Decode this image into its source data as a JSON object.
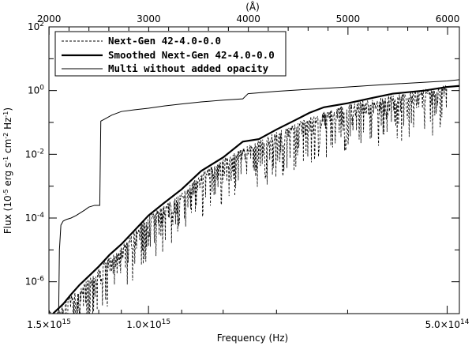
{
  "chart_data": {
    "type": "line",
    "title": "",
    "xlabel": "Frequency (Hz)",
    "ylabel_parts": [
      "Flux (10",
      "-5",
      " erg s",
      "-1",
      " cm",
      "-2",
      " Hz",
      "-1",
      ")"
    ],
    "x_scale": "reciprocal",
    "y_scale": "log",
    "xlim_hz": [
      1500000000000000.0,
      490000000000000.0
    ],
    "ylim": [
      1e-07,
      100
    ],
    "x_ticks": [
      {
        "value": 1500000000000000.0,
        "base": "1.5×10",
        "exp": "15"
      },
      {
        "value": 1000000000000000.0,
        "base": "1.0×10",
        "exp": "15"
      },
      {
        "value": 500000000000000.0,
        "base": "5.0×10",
        "exp": "14"
      }
    ],
    "y_ticks": [
      {
        "value": 1e-06,
        "base": "10",
        "exp": "-6"
      },
      {
        "value": 0.0001,
        "base": "10",
        "exp": "-4"
      },
      {
        "value": 0.01,
        "base": "10",
        "exp": "-2"
      },
      {
        "value": 1.0,
        "base": "10",
        "exp": "0"
      },
      {
        "value": 100.0,
        "base": "10",
        "exp": "2"
      }
    ],
    "top_axis": {
      "label": "(Å)",
      "ticks": [
        {
          "value": 2000,
          "label": "2000"
        },
        {
          "value": 3000,
          "label": "3000"
        },
        {
          "value": 4000,
          "label": "4000"
        },
        {
          "value": 5000,
          "label": "5000"
        },
        {
          "value": 6000,
          "label": "6000"
        }
      ]
    },
    "legend": {
      "placement": "top-left"
    },
    "series": [
      {
        "name": "Next-Gen 42-4.0-0.0",
        "style": "dashed",
        "points_hz_flux": [
          [
            1500000000000000.0,
            1e-07
          ],
          [
            1450000000000000.0,
            1e-07
          ],
          [
            1400000000000000.0,
            2e-07
          ],
          [
            1350000000000000.0,
            3e-07
          ],
          [
            1300000000000000.0,
            5e-07
          ],
          [
            1250000000000000.0,
            1e-06
          ],
          [
            1200000000000000.0,
            2e-06
          ],
          [
            1150000000000000.0,
            5e-06
          ],
          [
            1100000000000000.0,
            1e-05
          ],
          [
            1050000000000000.0,
            3e-05
          ],
          [
            1000000000000000.0,
            0.0001
          ],
          [
            950000000000000.0,
            0.0002
          ],
          [
            900000000000000.0,
            0.0005
          ],
          [
            850000000000000.0,
            0.002
          ],
          [
            800000000000000.0,
            0.006
          ],
          [
            750000000000000.0,
            0.015
          ],
          [
            700000000000000.0,
            0.04
          ],
          [
            650000000000000.0,
            0.12
          ],
          [
            600000000000000.0,
            0.3
          ],
          [
            550000000000000.0,
            0.6
          ],
          [
            520000000000000.0,
            0.9
          ],
          [
            500000000000000.0,
            1.2
          ]
        ]
      },
      {
        "name": "Smoothed Next-Gen 42-4.0-0.0",
        "style": "thick",
        "points_hz_flux": [
          [
            1470000000000000.0,
            1e-07
          ],
          [
            1400000000000000.0,
            2e-07
          ],
          [
            1350000000000000.0,
            4e-07
          ],
          [
            1300000000000000.0,
            8e-07
          ],
          [
            1250000000000000.0,
            1.5e-06
          ],
          [
            1200000000000000.0,
            3e-06
          ],
          [
            1150000000000000.0,
            7e-06
          ],
          [
            1100000000000000.0,
            1.5e-05
          ],
          [
            1050000000000000.0,
            4e-05
          ],
          [
            1000000000000000.0,
            0.00012
          ],
          [
            950000000000000.0,
            0.0003
          ],
          [
            900000000000000.0,
            0.0008
          ],
          [
            850000000000000.0,
            0.003
          ],
          [
            800000000000000.0,
            0.008
          ],
          [
            760000000000000.0,
            0.025
          ],
          [
            730000000000000.0,
            0.03
          ],
          [
            700000000000000.0,
            0.06
          ],
          [
            670000000000000.0,
            0.12
          ],
          [
            650000000000000.0,
            0.2
          ],
          [
            630000000000000.0,
            0.3
          ],
          [
            600000000000000.0,
            0.4
          ],
          [
            570000000000000.0,
            0.6
          ],
          [
            550000000000000.0,
            0.8
          ],
          [
            520000000000000.0,
            1.0
          ],
          [
            500000000000000.0,
            1.3
          ],
          [
            490000000000000.0,
            1.4
          ]
        ]
      },
      {
        "name": "Multi without added opacity",
        "style": "thin",
        "points_hz_flux": [
          [
            1430000000000000.0,
            1.2e-07
          ],
          [
            1425000000000000.0,
            1e-05
          ],
          [
            1415000000000000.0,
            6e-05
          ],
          [
            1400000000000000.0,
            8e-05
          ],
          [
            1380000000000000.0,
            9e-05
          ],
          [
            1350000000000000.0,
            0.0001
          ],
          [
            1320000000000000.0,
            0.00012
          ],
          [
            1300000000000000.0,
            0.00014
          ],
          [
            1270000000000000.0,
            0.00018
          ],
          [
            1250000000000000.0,
            0.00022
          ],
          [
            1220000000000000.0,
            0.00025
          ],
          [
            1195000000000000.0,
            0.00025
          ],
          [
            1190000000000000.0,
            0.11
          ],
          [
            1170000000000000.0,
            0.13
          ],
          [
            1140000000000000.0,
            0.17
          ],
          [
            1100000000000000.0,
            0.22
          ],
          [
            1050000000000000.0,
            0.25
          ],
          [
            1000000000000000.0,
            0.28
          ],
          [
            950000000000000.0,
            0.33
          ],
          [
            900000000000000.0,
            0.38
          ],
          [
            850000000000000.0,
            0.44
          ],
          [
            800000000000000.0,
            0.5
          ],
          [
            760000000000000.0,
            0.55
          ],
          [
            750000000000000.0,
            0.8
          ],
          [
            700000000000000.0,
            0.95
          ],
          [
            650000000000000.0,
            1.1
          ],
          [
            600000000000000.0,
            1.3
          ],
          [
            550000000000000.0,
            1.6
          ],
          [
            500000000000000.0,
            2.0
          ],
          [
            490000000000000.0,
            2.2
          ]
        ]
      }
    ]
  }
}
